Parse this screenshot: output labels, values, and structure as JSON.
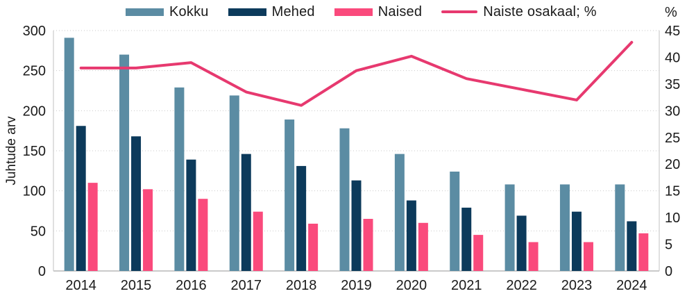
{
  "chart_data": {
    "type": "bar+line",
    "categories": [
      "2014",
      "2015",
      "2016",
      "2017",
      "2018",
      "2019",
      "2020",
      "2021",
      "2022",
      "2023",
      "2024"
    ],
    "bar_series": [
      {
        "name": "Kokku",
        "color": "#5B8CA3",
        "values": [
          291,
          270,
          229,
          219,
          189,
          178,
          146,
          124,
          108,
          108,
          108
        ]
      },
      {
        "name": "Mehed",
        "color": "#0C3A5B",
        "values": [
          181,
          168,
          139,
          146,
          131,
          113,
          88,
          79,
          69,
          74,
          62
        ]
      },
      {
        "name": "Naised",
        "color": "#FA4A7C",
        "values": [
          110,
          102,
          90,
          74,
          59,
          65,
          60,
          45,
          36,
          36,
          47
        ]
      }
    ],
    "line_series": {
      "name": "Naiste osakaal; %",
      "color": "#E7396F",
      "values": [
        38,
        38,
        39,
        33.5,
        31,
        37.5,
        40.2,
        36,
        34,
        32,
        42.8
      ]
    },
    "left_axis": {
      "label": "Juhtude arv",
      "min": 0,
      "max": 300,
      "step": 50,
      "ticks": [
        "0",
        "50",
        "100",
        "150",
        "200",
        "250",
        "300"
      ]
    },
    "right_axis": {
      "label": "%",
      "min": 0,
      "max": 45,
      "step": 5,
      "ticks": [
        "0",
        "5",
        "10",
        "15",
        "20",
        "25",
        "30",
        "35",
        "40",
        "45"
      ]
    },
    "grid": {
      "style": "dotted",
      "color": "#c9c9c9",
      "orientation": "horizontal"
    },
    "legend_position": "top",
    "text_color": "#1a1a1a",
    "axis_line_color": "#d6d6d6"
  }
}
